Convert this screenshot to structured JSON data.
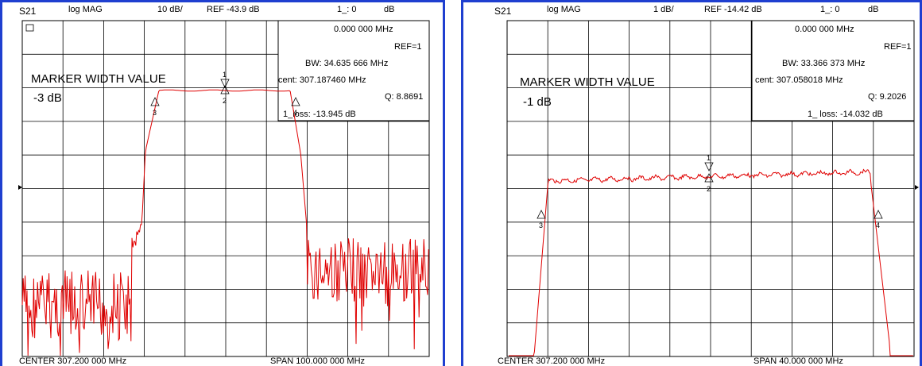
{
  "chart_data": [
    {
      "type": "line",
      "param": "S21",
      "format": "log MAG",
      "scale": "10 dB/",
      "ref": "REF -43.9 dB",
      "marker_readout": "1_: 0",
      "marker_unit": "dB",
      "marker_freq": "0.000 000 MHz",
      "ref_marker": "REF=1",
      "bw": "BW: 34.635 666 MHz",
      "cent": "cent: 307.187460 MHz",
      "q": "Q: 8.8691",
      "loss": "1_loss: -13.945 dB",
      "annotation_title": "MARKER WIDTH VALUE",
      "annotation_value": "-3 dB",
      "center": "CENTER 307.200 000 MHz",
      "span": "SPAN 100.000 000 MHz",
      "trace_color": "#e00000",
      "grid": true,
      "markers": [
        "1",
        "2",
        "3",
        "4"
      ]
    },
    {
      "type": "line",
      "param": "S21",
      "format": "log MAG",
      "scale": "1 dB/",
      "ref": "REF -14.42 dB",
      "marker_readout": "1_: 0",
      "marker_unit": "dB",
      "marker_freq": "0.000 000 MHz",
      "ref_marker": "REF=1",
      "bw": "BW: 33.366 373 MHz",
      "cent": "cent: 307.058018 MHz",
      "q": "Q: 9.2026",
      "loss": "1_ loss: -14.032 dB",
      "annotation_title": "MARKER WIDTH VALUE",
      "annotation_value": "-1 dB",
      "center": "CENTER 307.200 000 MHz",
      "span": "SPAN 40.000 000 MHz",
      "trace_color": "#e00000",
      "grid": true,
      "markers": [
        "1",
        "2",
        "3",
        "4"
      ]
    }
  ]
}
